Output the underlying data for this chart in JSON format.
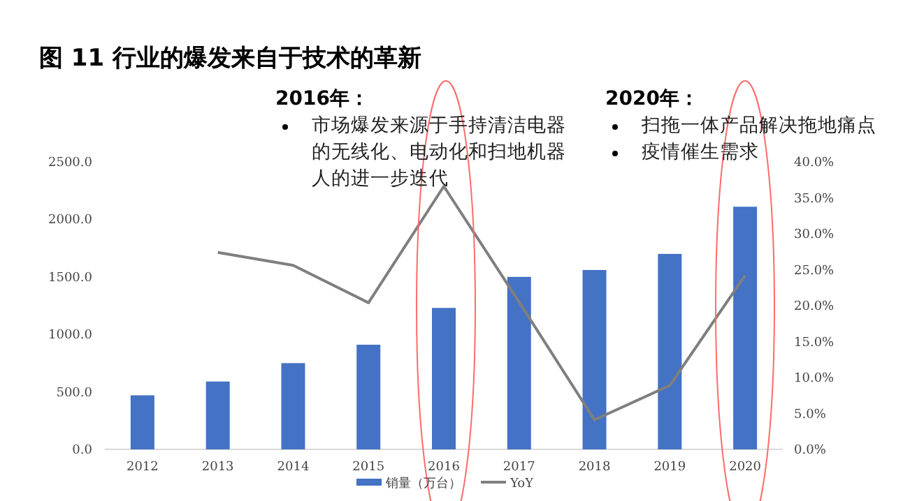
{
  "chart_data": {
    "type": "bar",
    "title": "图 11 行业的爆发来自于技术的革新",
    "categories": [
      "2012",
      "2013",
      "2014",
      "2015",
      "2016",
      "2017",
      "2018",
      "2019",
      "2020"
    ],
    "series": [
      {
        "name": "销量（万台）",
        "color": "#4472c4",
        "values": [
          470,
          590,
          750,
          910,
          1230,
          1500,
          1560,
          1700,
          2110
        ]
      },
      {
        "name": "YoY",
        "type": "line",
        "axis": "y2",
        "color": "#7f7f7f",
        "marker": "none",
        "values": [
          null,
          27.4,
          25.6,
          20.4,
          36.6,
          20.5,
          4.1,
          8.9,
          24.2
        ]
      }
    ],
    "ylim": [
      0,
      2500
    ],
    "yticks": [
      {
        "value": 0,
        "label": "0.0"
      },
      {
        "value": 500,
        "label": "500.0"
      },
      {
        "value": 1000,
        "label": "1000.0"
      },
      {
        "value": 1500,
        "label": "1500.0"
      },
      {
        "value": 2000,
        "label": "2000.0"
      },
      {
        "value": 2500,
        "label": "2500.0"
      }
    ],
    "y2lim": [
      0,
      40
    ],
    "y2ticks": [
      {
        "value": 0,
        "label": "0.0%"
      },
      {
        "value": 5,
        "label": "5.0%"
      },
      {
        "value": 10,
        "label": "10.0%"
      },
      {
        "value": 15,
        "label": "15.0%"
      },
      {
        "value": 20,
        "label": "20.0%"
      },
      {
        "value": 25,
        "label": "25.0%"
      },
      {
        "value": 30,
        "label": "30.0%"
      },
      {
        "value": 35,
        "label": "35.0%"
      },
      {
        "value": 40,
        "label": "40.0%"
      }
    ],
    "legend": "bottom",
    "annotations": [
      "2016年：",
      "市场爆发来源于手持清洁电器的无线化、电动化和扫地机器人的进一步迭代",
      "2020年：",
      "扫拖一体产品解决拖地痛点",
      "疫情催生需求"
    ]
  }
}
